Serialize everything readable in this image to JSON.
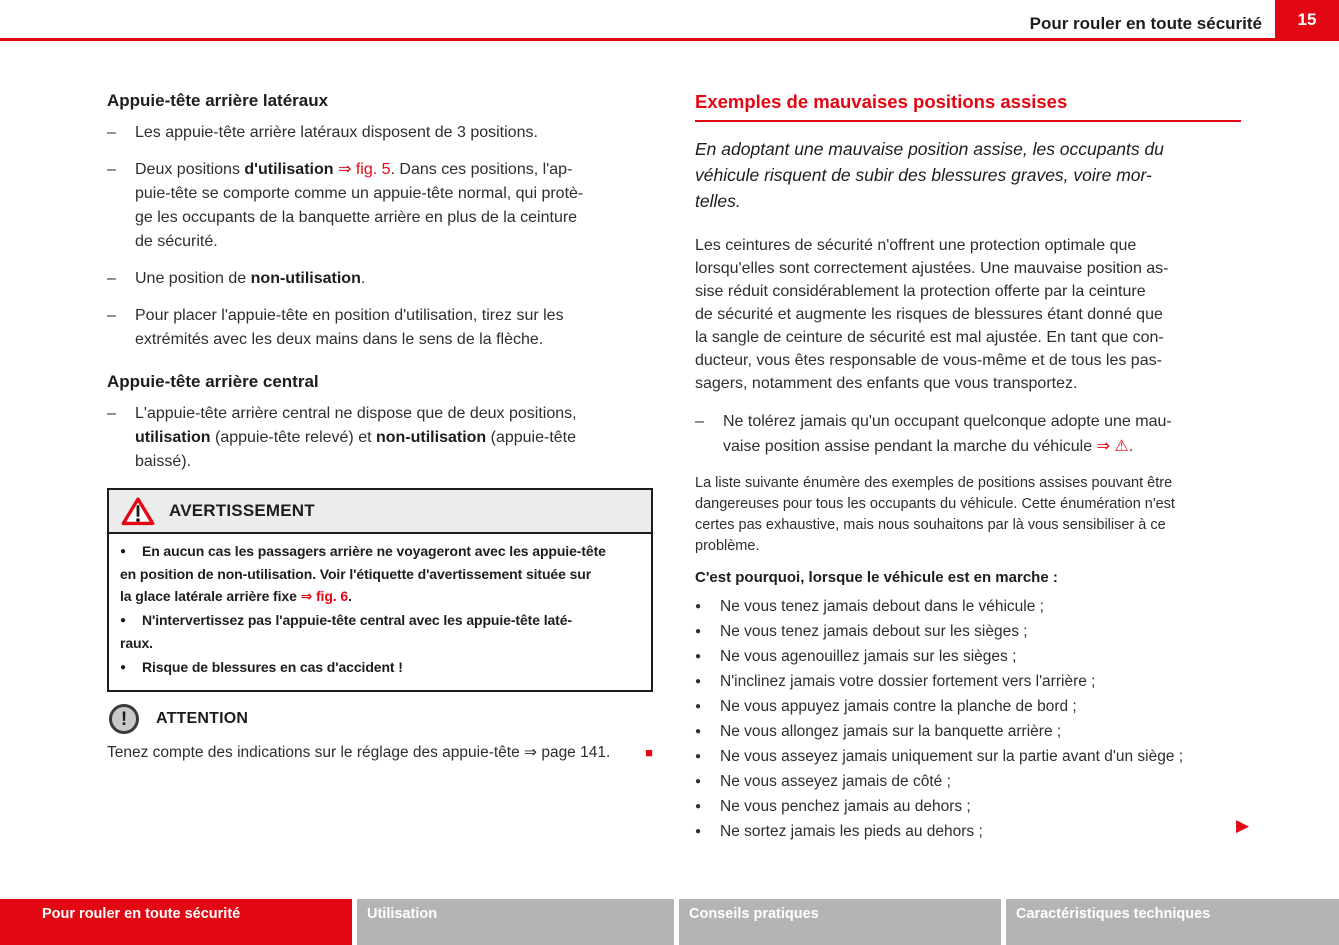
{
  "glyphs": {
    "dash": "–",
    "bullet": "●",
    "end_square": "■",
    "next_arrow": "▶",
    "exclamation": "!"
  },
  "header": {
    "title": "Pour rouler en toute sécurité",
    "page_number": "15"
  },
  "left": {
    "lateral": {
      "heading": "Appuie-tête arrière latéraux",
      "items": [
        [
          {
            "t": "Les appuie-tête arrière latéraux disposent de 3 positions."
          }
        ],
        [
          {
            "t": "Deux positions "
          },
          {
            "t": "d'utilisation",
            "c": "b"
          },
          {
            "t": " "
          },
          {
            "t": "⇒ fig. 5",
            "c": "r"
          },
          {
            "t": ". Dans ces positions, l'ap-\npuie-tête se comporte comme un appuie-tête normal, qui protè-\nge les occupants de la banquette arrière en plus de la ceinture\nde sécurité."
          }
        ],
        [
          {
            "t": "Une position de "
          },
          {
            "t": "non-utilisation",
            "c": "b"
          },
          {
            "t": "."
          }
        ],
        [
          {
            "t": "Pour placer l'appuie-tête en position d'utilisation, tirez sur les\nextrémités avec les deux mains dans le sens de la flèche."
          }
        ]
      ]
    },
    "central": {
      "heading": "Appuie-tête arrière central",
      "items": [
        [
          {
            "t": "L'appuie-tête arrière central ne dispose que de deux positions,\n"
          },
          {
            "t": "utilisation",
            "c": "b"
          },
          {
            "t": " (appuie-tête relevé) et "
          },
          {
            "t": "non-utilisation",
            "c": "b"
          },
          {
            "t": " (appuie-tête\nbaissé)."
          }
        ]
      ]
    },
    "warning": {
      "title": "AVERTISSEMENT",
      "items": [
        [
          {
            "t": "En aucun cas les passagers arrière ne voyageront avec les appuie-tête\nen position de non-utilisation. Voir l'étiquette d'avertissement située sur\nla glace latérale arrière fixe "
          },
          {
            "t": "⇒ fig. 6",
            "c": "r"
          },
          {
            "t": "."
          }
        ],
        [
          {
            "t": "N'intervertissez pas l'appuie-tête central avec les appuie-tête laté-\nraux."
          }
        ],
        [
          {
            "t": "Risque de blessures en cas d'accident !"
          }
        ]
      ]
    },
    "caution": {
      "title": "ATTENTION",
      "text": "Tenez compte des indications sur le réglage des appuie-tête ⇒ page 141."
    }
  },
  "right": {
    "heading": "Exemples de mauvaises positions assises",
    "lead": "En adoptant une mauvaise position assise, les occupants du\nvéhicule risquent de subir des blessures graves, voire mor-\ntelles.",
    "para1": "Les ceintures de sécurité n'offrent une protection optimale que\nlorsqu'elles sont correctement ajustées. Une mauvaise position as-\nsise réduit considérablement la protection offerte par la ceinture\nde sécurité et augmente les risques de blessures étant donné que\nla sangle de ceinture de sécurité est mal ajustée. En tant que con-\nducteur, vous êtes responsable de vous-même et de tous les pas-\nsagers, notamment des enfants que vous transportez.",
    "dash_item": [
      {
        "t": "Ne tolérez jamais qu'un occupant quelconque adopte une mau-\nvaise position assise pendant la marche du véhicule "
      },
      {
        "t": "⇒ ⚠",
        "c": "r"
      },
      {
        "t": "."
      }
    ],
    "para2": "La liste suivante énumère des exemples de positions assises pouvant être\ndangereuses pour tous les occupants du véhicule. Cette énumération n'est\ncertes pas exhaustive, mais nous souhaitons par là vous sensibiliser à ce\nproblème.",
    "intro": "C'est pourquoi, lorsque le véhicule est en marche :",
    "bullets": [
      "Ne vous tenez jamais debout dans le véhicule ;",
      "Ne vous tenez jamais debout sur les sièges ;",
      "Ne vous agenouillez jamais sur les sièges ;",
      "N'inclinez jamais votre dossier fortement vers l'arrière ;",
      "Ne vous appuyez jamais contre la planche de bord ;",
      "Ne vous allongez jamais sur la banquette arrière ;",
      "Ne vous asseyez jamais uniquement sur la partie avant d'un siège ;",
      "Ne vous asseyez jamais de côté ;",
      "Ne vous penchez jamais au dehors ;",
      "Ne sortez jamais les pieds au dehors ;"
    ]
  },
  "footer": {
    "tabs": [
      {
        "label": "Pour rouler en toute sécurité",
        "active": true
      },
      {
        "label": "Utilisation",
        "active": false
      },
      {
        "label": "Conseils pratiques",
        "active": false
      },
      {
        "label": "Caractéristiques techniques",
        "active": false
      }
    ]
  }
}
